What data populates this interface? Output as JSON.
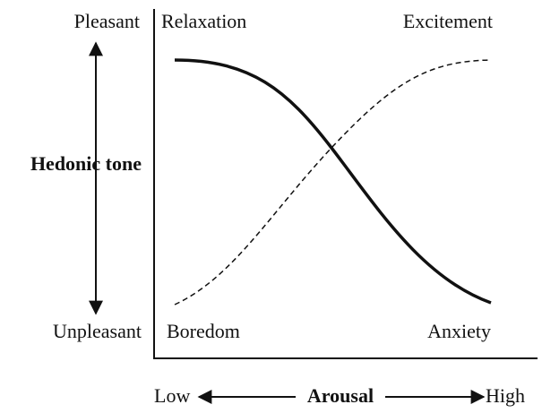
{
  "labels": {
    "top_left": "Pleasant",
    "bottom_left": "Unpleasant",
    "y_axis": "Hedonic tone",
    "x_axis": "Arousal",
    "x_low": "Low",
    "x_high": "High"
  },
  "quadrants": {
    "top_left": "Relaxation",
    "top_right": "Excitement",
    "bottom_left": "Boredom",
    "bottom_right": "Anxiety"
  }
}
